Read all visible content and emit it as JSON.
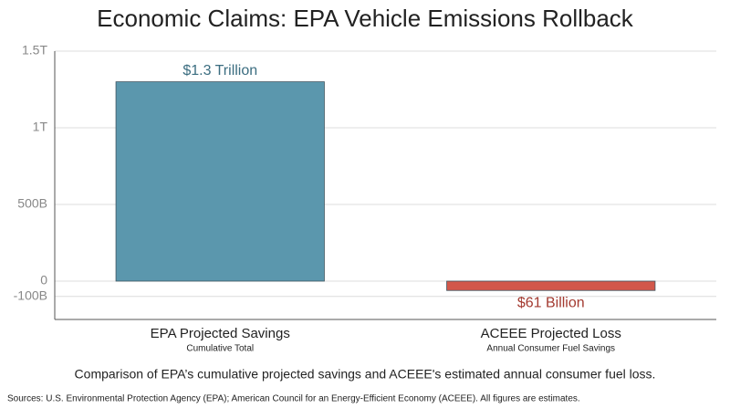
{
  "chart_data": {
    "type": "bar",
    "title": "Economic Claims: EPA Vehicle Emissions Rollback",
    "categories": [
      "EPA Projected Savings",
      "ACEEE Projected Loss"
    ],
    "subcategories": [
      "Cumulative Total",
      "Annual Consumer Fuel Savings"
    ],
    "values": [
      1300000000000,
      -61000000000
    ],
    "value_labels": [
      "$1.3 Trillion",
      "$61 Billion"
    ],
    "colors": [
      "#5b97ad",
      "#d2574a"
    ],
    "label_colors": [
      "#3b6d80",
      "#a33a30"
    ],
    "ylim": [
      -250000000000,
      1500000000000
    ],
    "yticks": [
      {
        "value": -100000000000,
        "label": "-100B"
      },
      0,
      {
        "value": 500000000000,
        "label": "500B"
      },
      {
        "value": 1000000000000,
        "label": "1T"
      },
      {
        "value": 1500000000000,
        "label": "1.5T"
      }
    ],
    "grid": true,
    "caption": "Comparison of EPA’s cumulative projected savings and ACEEE's estimated annual consumer fuel loss.",
    "source": "Sources: U.S. Environmental Protection Agency (EPA); American Council for an Energy-Efficient Economy (ACEEE). All figures are estimates."
  }
}
